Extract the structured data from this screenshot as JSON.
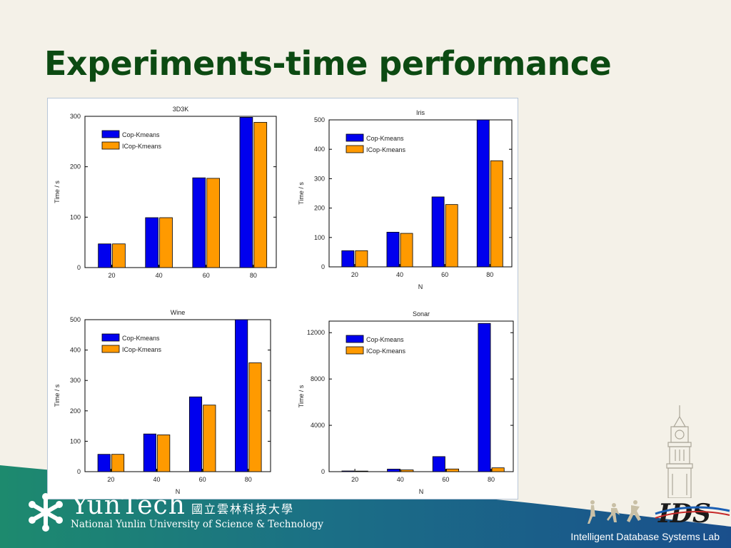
{
  "slide": {
    "title": "Experiments-time performance"
  },
  "footer": {
    "university_en": "YunTech",
    "university_zh": "國立雲林科技大學",
    "university_full": "National Yunlin University of Science & Technology",
    "lab_name": "Intelligent Database Systems Lab",
    "lab_logo_text": "IDS"
  },
  "colors": {
    "title": "#0c4a12",
    "series_cop": "#0000ee",
    "series_icop": "#ff9a00",
    "band_green": "#1d8a6e",
    "band_blue": "#1a4f8c"
  },
  "chart_data": [
    {
      "type": "bar",
      "title": "3D3K",
      "xlabel": "",
      "ylabel": "Time / s",
      "categories": [
        "20",
        "40",
        "60",
        "80"
      ],
      "ylim": [
        0,
        300
      ],
      "yticks": [
        0,
        100,
        200,
        300
      ],
      "legend": "top-left",
      "series": [
        {
          "name": "Cop-Kmeans",
          "values": [
            47,
            99,
            178,
            298
          ]
        },
        {
          "name": "ICop-Kmeans",
          "values": [
            47,
            99,
            177,
            288
          ]
        }
      ]
    },
    {
      "type": "bar",
      "title": "Iris",
      "xlabel": "N",
      "ylabel": "Time / s",
      "categories": [
        "20",
        "40",
        "60",
        "80"
      ],
      "ylim": [
        0,
        500
      ],
      "yticks": [
        0,
        100,
        200,
        300,
        400,
        500
      ],
      "legend": "top-left",
      "series": [
        {
          "name": "Cop-Kmeans",
          "values": [
            55,
            118,
            238,
            504
          ]
        },
        {
          "name": "ICop-Kmeans",
          "values": [
            55,
            114,
            212,
            361
          ]
        }
      ]
    },
    {
      "type": "bar",
      "title": "Wine",
      "xlabel": "N",
      "ylabel": "Time / s",
      "categories": [
        "20",
        "40",
        "60",
        "80"
      ],
      "ylim": [
        0,
        500
      ],
      "yticks": [
        0,
        100,
        200,
        300,
        400,
        500
      ],
      "legend": "top-left",
      "series": [
        {
          "name": "Cop-Kmeans",
          "values": [
            57,
            124,
            246,
            500
          ]
        },
        {
          "name": "ICop-Kmeans",
          "values": [
            57,
            121,
            219,
            358
          ]
        }
      ]
    },
    {
      "type": "bar",
      "title": "Sonar",
      "xlabel": "N",
      "ylabel": "Time / s",
      "categories": [
        "20",
        "40",
        "60",
        "80"
      ],
      "ylim": [
        0,
        13000
      ],
      "yticks": [
        0,
        4000,
        8000,
        12000
      ],
      "legend": "top-left",
      "series": [
        {
          "name": "Cop-Kmeans",
          "values": [
            60,
            220,
            1300,
            12800
          ]
        },
        {
          "name": "ICop-Kmeans",
          "values": [
            50,
            150,
            230,
            330
          ]
        }
      ]
    }
  ]
}
